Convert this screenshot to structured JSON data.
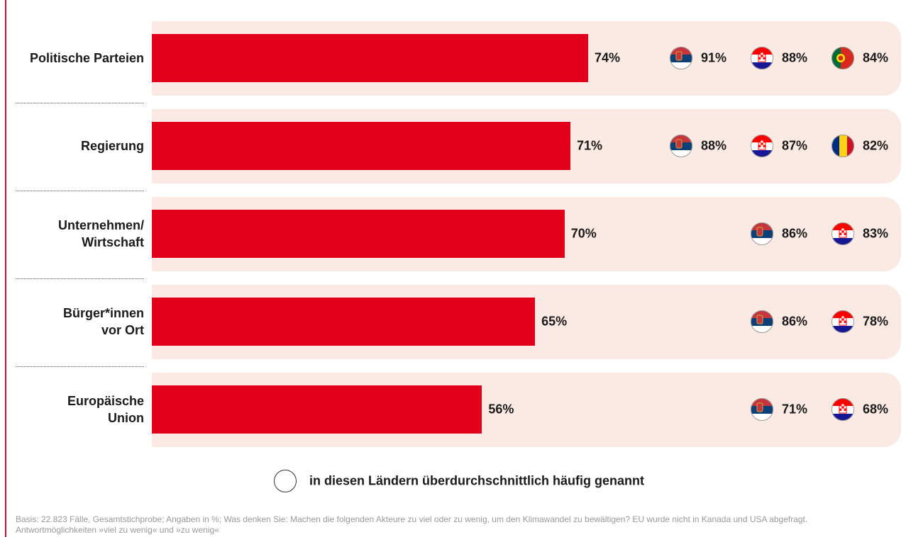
{
  "chart_data": {
    "type": "bar",
    "orientation": "horizontal",
    "categories": [
      "Politische Parteien",
      "Regierung",
      "Unternehmen/\nWirtschaft",
      "Bürger*innen\nvor Ort",
      "Europäische\nUnion"
    ],
    "values": [
      74,
      71,
      70,
      65,
      56
    ],
    "value_labels": [
      "74%",
      "71%",
      "70%",
      "65%",
      "56%"
    ],
    "color": "#e2001a",
    "xlim": [
      0,
      100
    ],
    "country_values": [
      [
        91,
        88,
        84
      ],
      [
        88,
        87,
        82
      ],
      [
        86,
        83
      ],
      [
        86,
        78
      ],
      [
        71,
        68
      ]
    ],
    "country_labels": [
      [
        "91%",
        "88%",
        "84%"
      ],
      [
        "88%",
        "87%",
        "82%"
      ],
      [
        "86%",
        "83%"
      ],
      [
        "86%",
        "78%"
      ],
      [
        "71%",
        "68%"
      ]
    ],
    "legend": "in diesen Ländern überdurchschnittlich häufig genannt",
    "footnote": "Basis: 22.823 Fälle, Gesamtstichprobe; Angaben in %; Was denken Sie: Machen die folgenden Akteure zu viel oder zu wenig, um den Klimawandel zu bewältigen? EU wurde nicht in Kanada und USA abgefragt.\nAntwortmöglichkeiten »viel zu wenig« und »zu wenig«"
  }
}
